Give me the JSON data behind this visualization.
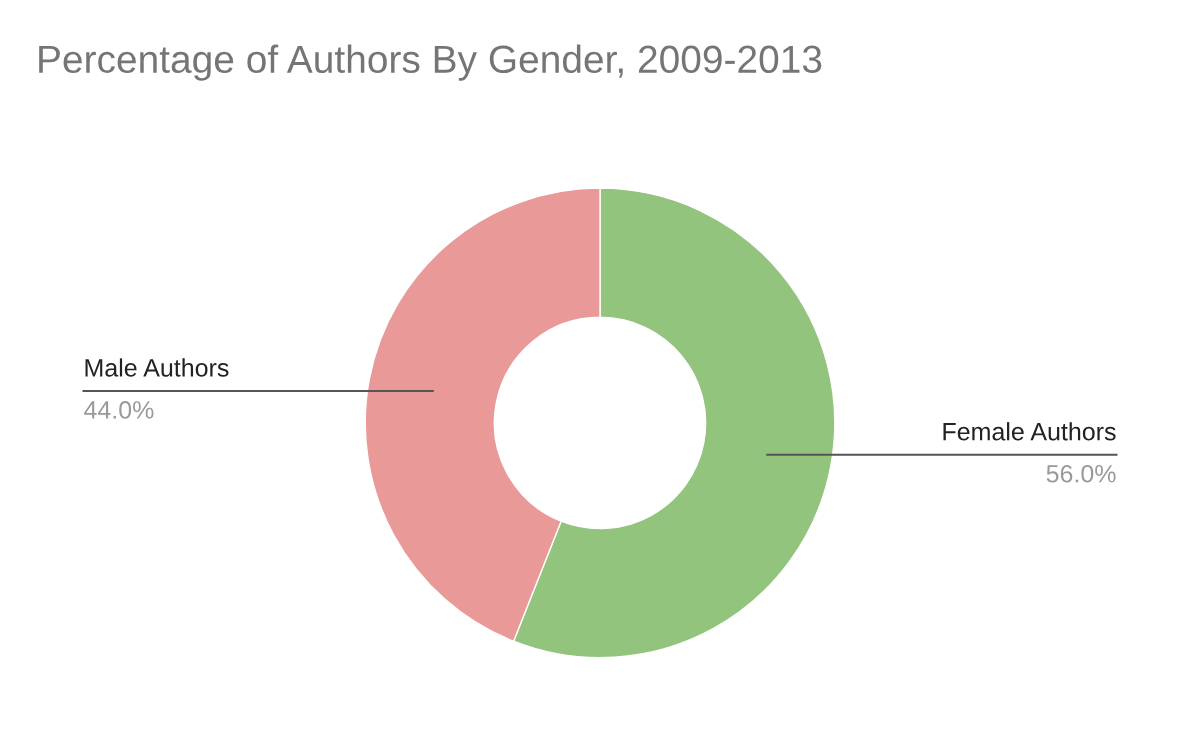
{
  "chart_data": {
    "type": "donut",
    "title": "Percentage of Authors By Gender, 2009-2013",
    "categories": [
      "Female Authors",
      "Male Authors"
    ],
    "values": [
      56,
      44
    ],
    "value_labels": [
      "56.0%",
      "44.0%"
    ],
    "colors": [
      "#93c47d",
      "#ea9999"
    ]
  }
}
